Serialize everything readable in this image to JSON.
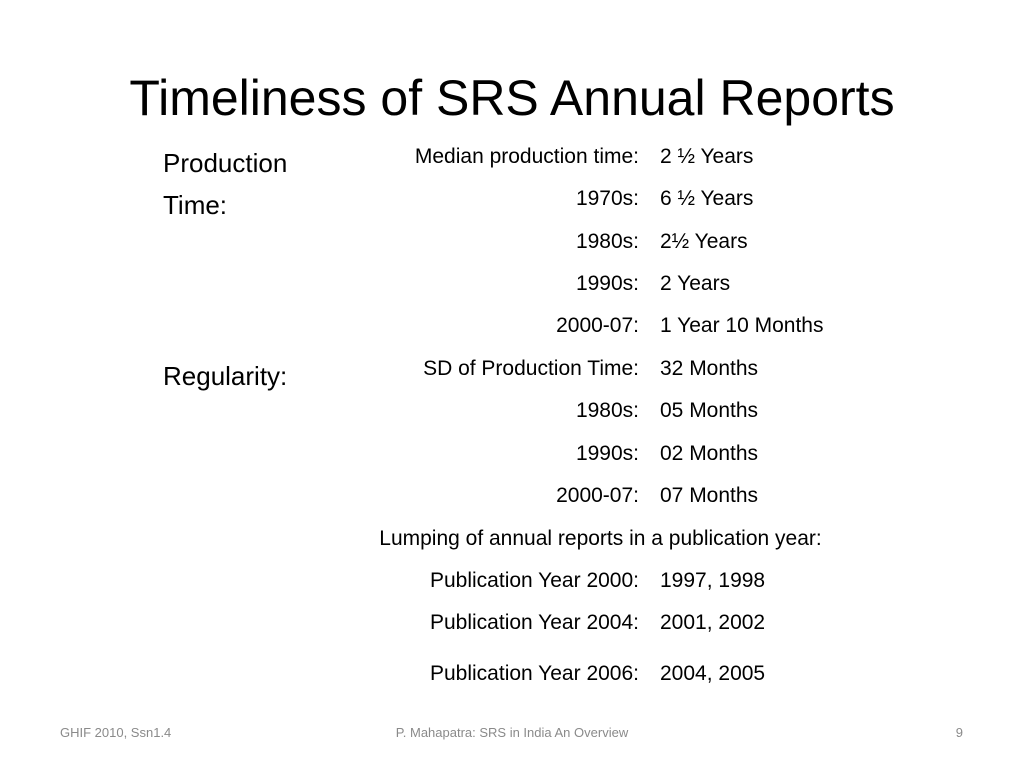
{
  "title": "Timeliness of SRS Annual Reports",
  "production": {
    "label": "Production Time:",
    "rows": [
      {
        "label": "Median production time:",
        "value": "2 ½ Years"
      },
      {
        "label": "1970s:",
        "value": "6 ½ Years"
      },
      {
        "label": "1980s:",
        "value": "2½ Years"
      },
      {
        "label": "1990s:",
        "value": "2 Years"
      },
      {
        "label": "2000-07:",
        "value": "1 Year 10 Months"
      }
    ]
  },
  "regularity": {
    "label": "Regularity:",
    "rows": [
      {
        "label": "SD of Production Time:",
        "value": "32 Months"
      },
      {
        "label": "1980s:",
        "value": "05 Months"
      },
      {
        "label": "1990s:",
        "value": "02 Months"
      },
      {
        "label": "2000-07:",
        "value": "07 Months"
      }
    ]
  },
  "lumping": {
    "heading": "Lumping of annual reports in a publication year:",
    "rows": [
      {
        "label": "Publication Year 2000:",
        "value": "1997, 1998"
      },
      {
        "label": "Publication Year 2004:",
        "value": "2001, 2002"
      },
      {
        "label": "Publication Year 2006:",
        "value": "2004, 2005"
      }
    ]
  },
  "footer": {
    "left": "GHIF 2010, Ssn1.4",
    "center": "P. Mahapatra: SRS in India An Overview",
    "page_number": "9"
  }
}
